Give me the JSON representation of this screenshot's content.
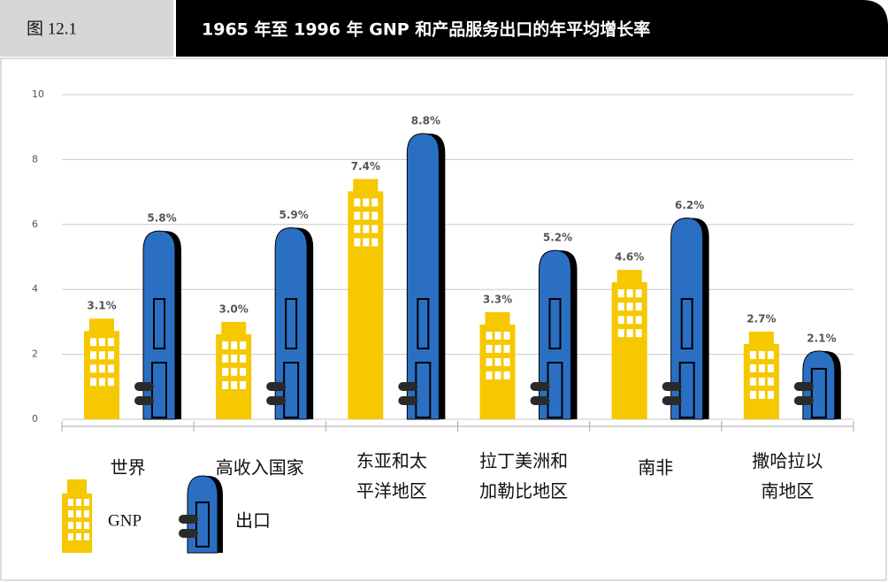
{
  "figure_label": "图 12.1",
  "chart_data": {
    "type": "bar",
    "title": "1965 年至 1996 年 GNP 和产品服务出口的年平均增长率",
    "categories": [
      "世界",
      "高收入国家",
      "东亚和太平洋地区",
      "拉丁美洲和加勒比地区",
      "南非",
      "撒哈拉以南地区"
    ],
    "series": [
      {
        "name": "GNP",
        "color": "#f5c800",
        "values": [
          3.1,
          3.0,
          7.4,
          3.3,
          4.6,
          2.7
        ],
        "value_labels": [
          "3.1%",
          "3.0%",
          "7.4%",
          "3.3%",
          "4.6%",
          "2.7%"
        ]
      },
      {
        "name": "出口",
        "color": "#2b6fc2",
        "values": [
          5.8,
          5.9,
          8.8,
          5.2,
          6.2,
          2.1
        ],
        "value_labels": [
          "5.8%",
          "5.9%",
          "8.8%",
          "5.2%",
          "6.2%",
          "2.1%"
        ]
      }
    ],
    "ylim": [
      0,
      10
    ],
    "yticks": [
      0,
      2,
      4,
      6,
      8,
      10
    ],
    "grid": true
  }
}
